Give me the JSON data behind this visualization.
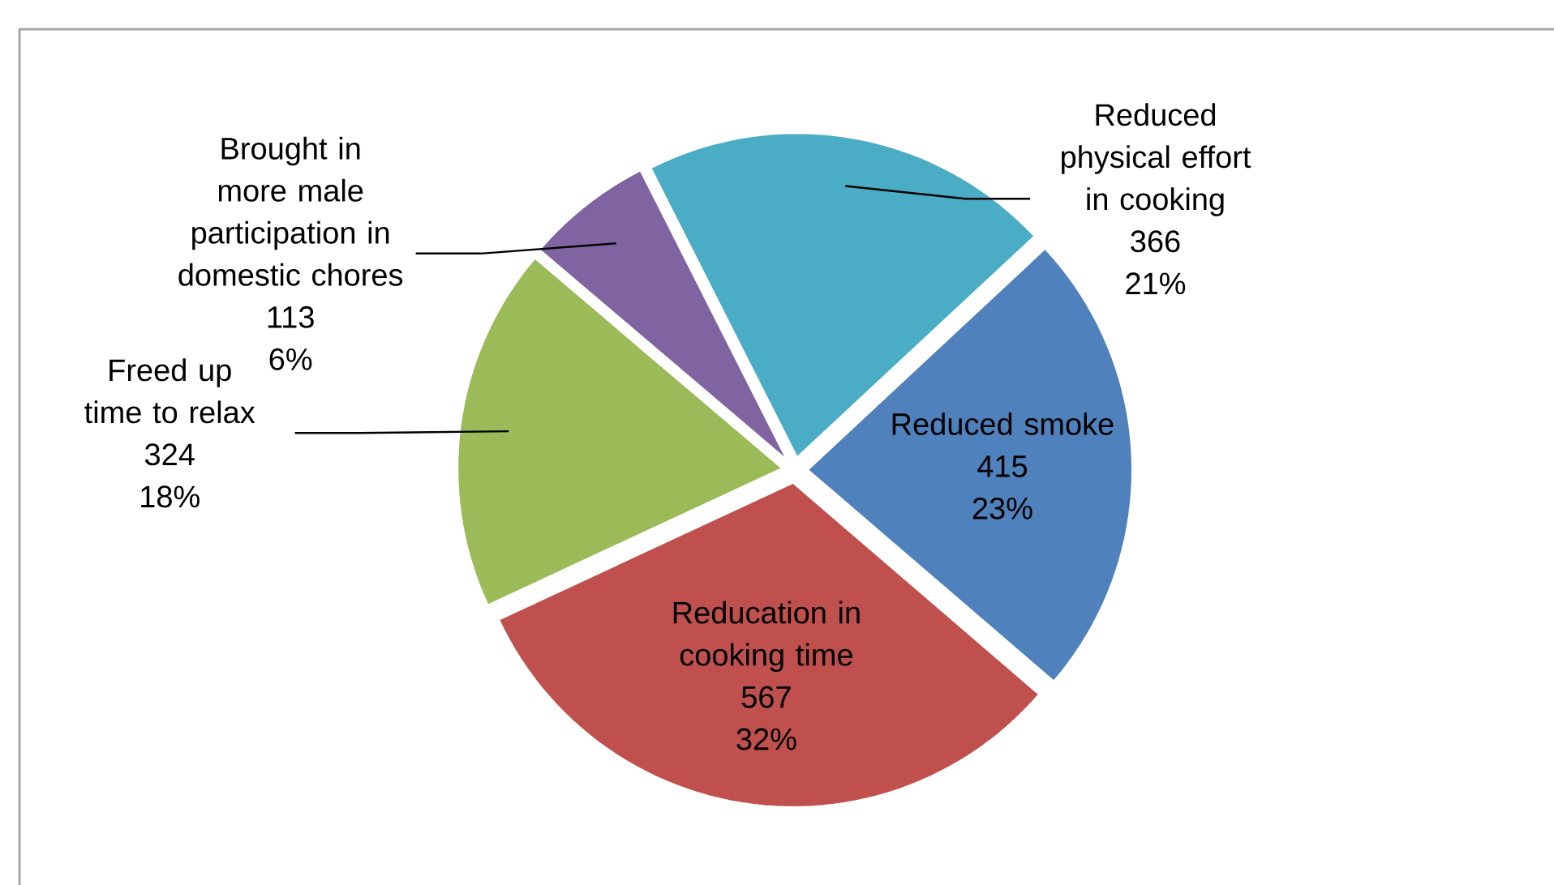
{
  "chart_data": {
    "type": "pie",
    "categories": [
      "Reduced smoke",
      "Reducation in cooking time",
      "Freed up time to relax",
      "Brought in more male participation in domestic chores",
      "Reduced physical effort in cooking"
    ],
    "values": [
      415,
      567,
      324,
      113,
      366
    ],
    "colors": [
      "#4f81bd",
      "#c0504d",
      "#9bbb59",
      "#8064a2",
      "#4bacc6"
    ],
    "value_labels": [
      "415",
      "567",
      "324",
      "113",
      "366"
    ],
    "annotations": [
      {
        "text": "23%",
        "x": "Reduced smoke"
      },
      {
        "text": "32%",
        "x": "Reducation in cooking time"
      },
      {
        "text": "18%",
        "x": "Freed up time to relax"
      },
      {
        "text": "6%",
        "x": "Brought in more male participation in domestic chores"
      },
      {
        "text": "21%",
        "x": "Reduced physical effort in cooking"
      }
    ]
  }
}
